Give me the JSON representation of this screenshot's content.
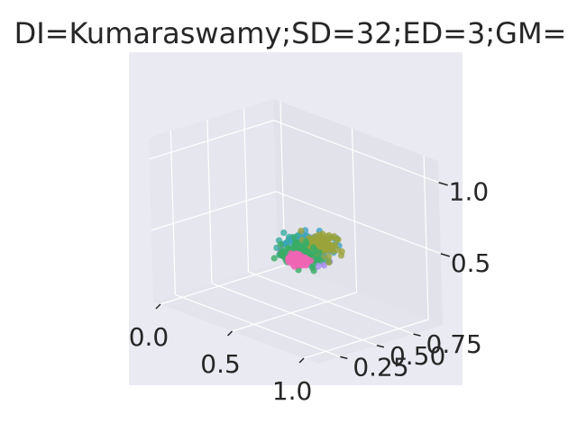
{
  "chart_data": {
    "type": "scatter",
    "projection": "3d",
    "title": "DI=Kumaraswamy;SD=32;ED=3;GM=",
    "xlabel": "",
    "ylabel": "",
    "zlabel": "",
    "xlim": [
      -0.05,
      1.1
    ],
    "ylim": [
      0.1,
      0.95
    ],
    "zlim": [
      0.0,
      1.15
    ],
    "x_ticks": [
      "0.0",
      "0.5",
      "1.0"
    ],
    "y_ticks": [
      "0.25",
      "0.50",
      "0.75"
    ],
    "z_ticks": [
      "0.5",
      "1.0"
    ],
    "grid": true,
    "legend": "none",
    "background": "#eaeaf2",
    "colors": [
      "#a58cf0",
      "#36ad9f",
      "#3ea3c6",
      "#9aa33b",
      "#3aad66",
      "#f064b4"
    ],
    "series_count": 6,
    "points_per_series": 85
  }
}
